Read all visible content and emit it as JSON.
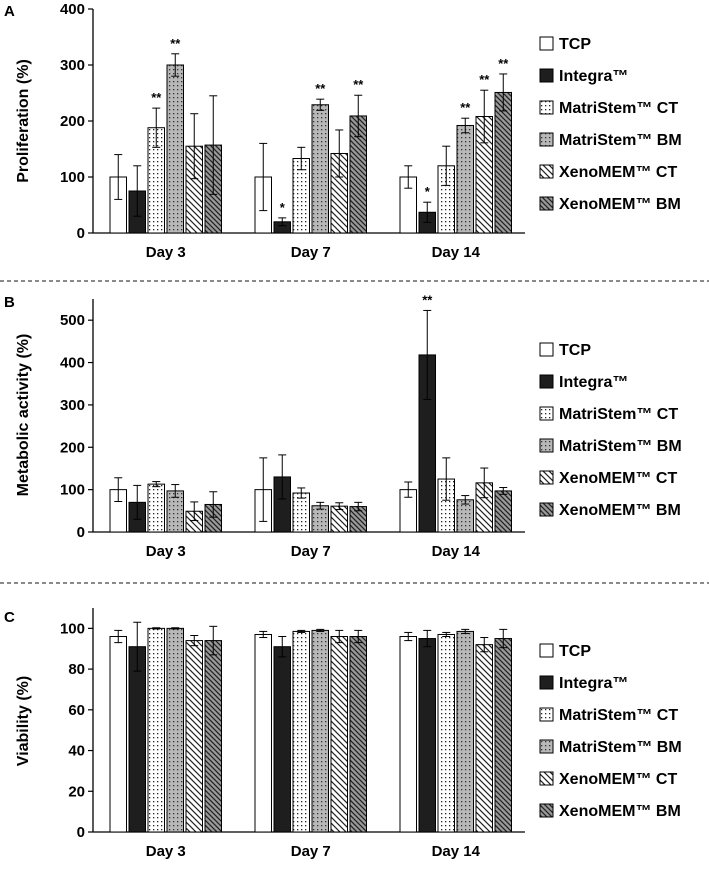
{
  "chart_data": [
    {
      "type": "bar",
      "panel": "A",
      "ylabel": "Proliferation (%)",
      "ylim": [
        0,
        400
      ],
      "yticks": [
        0,
        100,
        200,
        300,
        400
      ],
      "categories": [
        "Day 3",
        "Day 7",
        "Day 14"
      ],
      "series": [
        {
          "name": "TCP",
          "values": [
            100,
            100,
            100
          ],
          "errors": [
            40,
            60,
            20
          ],
          "sig": [
            "",
            "",
            ""
          ]
        },
        {
          "name": "Integra™",
          "values": [
            75,
            20,
            37
          ],
          "errors": [
            45,
            7,
            18
          ],
          "sig": [
            "",
            "*",
            "*"
          ]
        },
        {
          "name": "MatriStem™ CT",
          "values": [
            188,
            133,
            120
          ],
          "errors": [
            35,
            20,
            35
          ],
          "sig": [
            "**",
            "",
            ""
          ]
        },
        {
          "name": "MatriStem™ BM",
          "values": [
            300,
            229,
            192
          ],
          "errors": [
            20,
            10,
            13
          ],
          "sig": [
            "**",
            "**",
            "**"
          ]
        },
        {
          "name": "XenoMEM™ CT",
          "values": [
            155,
            142,
            208
          ],
          "errors": [
            58,
            42,
            47
          ],
          "sig": [
            "",
            "",
            "**"
          ]
        },
        {
          "name": "XenoMEM™ BM",
          "values": [
            157,
            209,
            251
          ],
          "errors": [
            88,
            37,
            33
          ],
          "sig": [
            "",
            "**",
            "**"
          ]
        }
      ]
    },
    {
      "type": "bar",
      "panel": "B",
      "ylabel": "Metabolic activity (%)",
      "ylim": [
        0,
        550
      ],
      "yticks": [
        0,
        100,
        200,
        300,
        400,
        500
      ],
      "categories": [
        "Day 3",
        "Day 7",
        "Day 14"
      ],
      "series": [
        {
          "name": "TCP",
          "values": [
            100,
            100,
            100
          ],
          "errors": [
            28,
            75,
            18
          ],
          "sig": [
            "",
            "",
            ""
          ]
        },
        {
          "name": "Integra™",
          "values": [
            70,
            130,
            418
          ],
          "errors": [
            40,
            52,
            105
          ],
          "sig": [
            "",
            "",
            "**"
          ]
        },
        {
          "name": "MatriStem™ CT",
          "values": [
            113,
            92,
            125
          ],
          "errors": [
            6,
            12,
            50
          ],
          "sig": [
            "",
            "",
            ""
          ]
        },
        {
          "name": "MatriStem™ BM",
          "values": [
            97,
            62,
            76
          ],
          "errors": [
            15,
            8,
            10
          ],
          "sig": [
            "",
            "",
            ""
          ]
        },
        {
          "name": "XenoMEM™ CT",
          "values": [
            49,
            61,
            116
          ],
          "errors": [
            22,
            8,
            35
          ],
          "sig": [
            "",
            "",
            ""
          ]
        },
        {
          "name": "XenoMEM™ BM",
          "values": [
            65,
            60,
            97
          ],
          "errors": [
            30,
            10,
            8
          ],
          "sig": [
            "",
            "",
            ""
          ]
        }
      ]
    },
    {
      "type": "bar",
      "panel": "C",
      "ylabel": "Viability (%)",
      "ylim": [
        0,
        110
      ],
      "yticks": [
        0,
        20,
        40,
        60,
        80,
        100
      ],
      "categories": [
        "Day 3",
        "Day 7",
        "Day 14"
      ],
      "series": [
        {
          "name": "TCP",
          "values": [
            96,
            97,
            96
          ],
          "errors": [
            3,
            1.5,
            2
          ],
          "sig": [
            "",
            "",
            ""
          ]
        },
        {
          "name": "Integra™",
          "values": [
            91,
            91,
            95
          ],
          "errors": [
            12,
            5,
            4
          ],
          "sig": [
            "",
            "",
            ""
          ]
        },
        {
          "name": "MatriStem™ CT",
          "values": [
            100,
            98.5,
            97
          ],
          "errors": [
            0.3,
            0.5,
            1
          ],
          "sig": [
            "",
            "",
            ""
          ]
        },
        {
          "name": "MatriStem™ BM",
          "values": [
            100,
            99,
            98.5
          ],
          "errors": [
            0.3,
            0.5,
            1
          ],
          "sig": [
            "",
            "",
            ""
          ]
        },
        {
          "name": "XenoMEM™ CT",
          "values": [
            94,
            96,
            92
          ],
          "errors": [
            2.5,
            3,
            3.5
          ],
          "sig": [
            "",
            "",
            ""
          ]
        },
        {
          "name": "XenoMEM™ BM",
          "values": [
            94,
            96,
            95
          ],
          "errors": [
            7,
            3,
            4.5
          ],
          "sig": [
            "",
            "",
            ""
          ]
        }
      ]
    }
  ],
  "legend": {
    "items": [
      {
        "name": "TCP",
        "style": "white"
      },
      {
        "name": "Integra™",
        "style": "black"
      },
      {
        "name": "MatriStem™ CT",
        "style": "dots-light"
      },
      {
        "name": "MatriStem™ BM",
        "style": "dots-gray"
      },
      {
        "name": "XenoMEM™ CT",
        "style": "hatch-light"
      },
      {
        "name": "XenoMEM™ BM",
        "style": "hatch-dark"
      }
    ]
  }
}
